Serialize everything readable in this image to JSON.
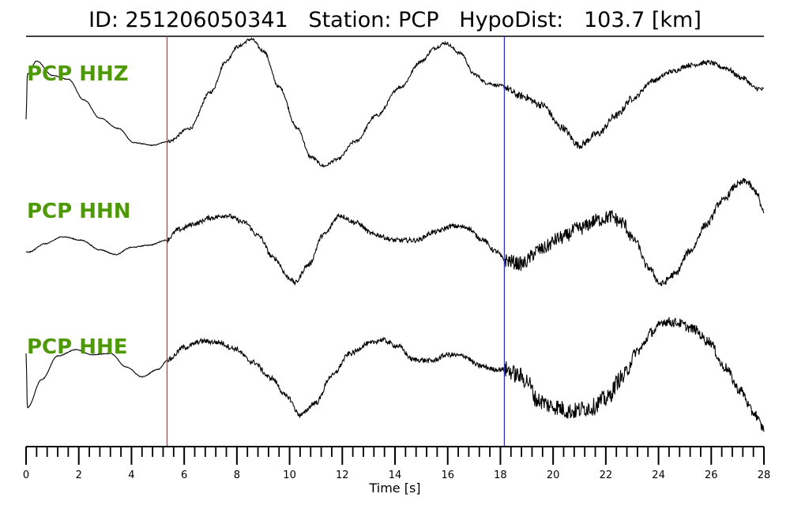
{
  "header": {
    "title": "ID: 251206050341   Station: PCP   HypoDist:   103.7 [km]"
  },
  "chart_data": {
    "type": "line",
    "xlabel": "Time [s]",
    "xlim": [
      0,
      28
    ],
    "major_ticks": [
      0,
      2,
      4,
      6,
      8,
      10,
      12,
      14,
      16,
      18,
      20,
      22,
      24,
      26,
      28
    ],
    "minor_tick_step": 0.4,
    "p_pick": {
      "time": 5.35,
      "color": "#e03030"
    },
    "s_pick": {
      "time": 18.15,
      "color": "#3030c0"
    },
    "trace_color": "#000000",
    "label_color": "#4e9a06",
    "series": [
      {
        "name": "PCP HHZ",
        "noise": [
          0.003,
          0.012,
          0.028,
          0.018
        ],
        "points": [
          [
            0,
            0.37
          ],
          [
            0.05,
            0.72
          ],
          [
            0.4,
            0.82
          ],
          [
            1.0,
            0.71
          ],
          [
            1.6,
            0.68
          ],
          [
            2.2,
            0.52
          ],
          [
            2.8,
            0.38
          ],
          [
            3.5,
            0.3
          ],
          [
            4.1,
            0.19
          ],
          [
            4.8,
            0.17
          ],
          [
            5.4,
            0.2
          ],
          [
            6.2,
            0.3
          ],
          [
            7.0,
            0.58
          ],
          [
            7.6,
            0.82
          ],
          [
            8.0,
            0.93
          ],
          [
            8.55,
            0.99
          ],
          [
            9.0,
            0.9
          ],
          [
            9.6,
            0.62
          ],
          [
            10.3,
            0.3
          ],
          [
            10.8,
            0.08
          ],
          [
            11.3,
            0.01
          ],
          [
            11.8,
            0.06
          ],
          [
            12.5,
            0.2
          ],
          [
            13.3,
            0.4
          ],
          [
            14.2,
            0.62
          ],
          [
            15.0,
            0.82
          ],
          [
            15.5,
            0.92
          ],
          [
            15.9,
            0.96
          ],
          [
            16.5,
            0.88
          ],
          [
            17.0,
            0.72
          ],
          [
            17.5,
            0.65
          ],
          [
            18.0,
            0.63
          ],
          [
            18.8,
            0.55
          ],
          [
            19.6,
            0.48
          ],
          [
            20.3,
            0.31
          ],
          [
            21.0,
            0.17
          ],
          [
            21.7,
            0.26
          ],
          [
            22.4,
            0.4
          ],
          [
            23.0,
            0.53
          ],
          [
            23.8,
            0.67
          ],
          [
            24.5,
            0.74
          ],
          [
            25.2,
            0.79
          ],
          [
            25.9,
            0.81
          ],
          [
            26.5,
            0.77
          ],
          [
            27.2,
            0.69
          ],
          [
            27.7,
            0.61
          ],
          [
            28.0,
            0.6
          ]
        ]
      },
      {
        "name": "PCP HHN",
        "noise": [
          0.004,
          0.02,
          0.06,
          0.03
        ],
        "points": [
          [
            0,
            0.35
          ],
          [
            0.1,
            0.35
          ],
          [
            0.7,
            0.42
          ],
          [
            1.4,
            0.48
          ],
          [
            2.1,
            0.45
          ],
          [
            2.8,
            0.37
          ],
          [
            3.4,
            0.33
          ],
          [
            4.0,
            0.39
          ],
          [
            4.7,
            0.41
          ],
          [
            5.3,
            0.45
          ],
          [
            5.8,
            0.54
          ],
          [
            6.4,
            0.59
          ],
          [
            7.0,
            0.64
          ],
          [
            7.6,
            0.66
          ],
          [
            8.3,
            0.6
          ],
          [
            8.8,
            0.49
          ],
          [
            9.4,
            0.3
          ],
          [
            10.0,
            0.13
          ],
          [
            10.2,
            0.09
          ],
          [
            10.7,
            0.24
          ],
          [
            11.3,
            0.5
          ],
          [
            11.9,
            0.66
          ],
          [
            12.5,
            0.6
          ],
          [
            13.2,
            0.5
          ],
          [
            14.0,
            0.45
          ],
          [
            14.8,
            0.45
          ],
          [
            15.5,
            0.52
          ],
          [
            16.2,
            0.57
          ],
          [
            16.7,
            0.56
          ],
          [
            17.3,
            0.46
          ],
          [
            17.8,
            0.36
          ],
          [
            18.2,
            0.28
          ],
          [
            18.8,
            0.25
          ],
          [
            19.5,
            0.37
          ],
          [
            20.3,
            0.47
          ],
          [
            21.0,
            0.55
          ],
          [
            21.7,
            0.62
          ],
          [
            22.2,
            0.65
          ],
          [
            22.6,
            0.6
          ],
          [
            23.1,
            0.45
          ],
          [
            23.6,
            0.22
          ],
          [
            24.1,
            0.08
          ],
          [
            24.6,
            0.16
          ],
          [
            25.2,
            0.36
          ],
          [
            25.8,
            0.58
          ],
          [
            26.4,
            0.78
          ],
          [
            27.0,
            0.92
          ],
          [
            27.3,
            0.95
          ],
          [
            27.7,
            0.86
          ],
          [
            28.0,
            0.68
          ]
        ]
      },
      {
        "name": "PCP HHE",
        "noise": [
          0.003,
          0.02,
          0.07,
          0.04
        ],
        "points": [
          [
            0,
            0.68
          ],
          [
            0.05,
            0.24
          ],
          [
            0.6,
            0.47
          ],
          [
            1.2,
            0.66
          ],
          [
            1.9,
            0.71
          ],
          [
            2.5,
            0.67
          ],
          [
            3.2,
            0.68
          ],
          [
            3.8,
            0.57
          ],
          [
            4.4,
            0.49
          ],
          [
            5.0,
            0.55
          ],
          [
            5.4,
            0.63
          ],
          [
            6.0,
            0.73
          ],
          [
            6.7,
            0.78
          ],
          [
            7.3,
            0.77
          ],
          [
            7.9,
            0.72
          ],
          [
            8.6,
            0.61
          ],
          [
            9.3,
            0.48
          ],
          [
            9.9,
            0.33
          ],
          [
            10.4,
            0.18
          ],
          [
            11.0,
            0.28
          ],
          [
            11.6,
            0.5
          ],
          [
            12.3,
            0.68
          ],
          [
            13.0,
            0.76
          ],
          [
            13.5,
            0.79
          ],
          [
            14.1,
            0.74
          ],
          [
            14.7,
            0.63
          ],
          [
            15.4,
            0.62
          ],
          [
            16.0,
            0.67
          ],
          [
            16.6,
            0.66
          ],
          [
            17.2,
            0.58
          ],
          [
            17.8,
            0.55
          ],
          [
            18.2,
            0.55
          ],
          [
            18.7,
            0.5
          ],
          [
            19.0,
            0.46
          ],
          [
            19.4,
            0.3
          ],
          [
            20.0,
            0.25
          ],
          [
            20.7,
            0.21
          ],
          [
            21.4,
            0.24
          ],
          [
            22.0,
            0.31
          ],
          [
            22.6,
            0.48
          ],
          [
            23.2,
            0.7
          ],
          [
            23.8,
            0.86
          ],
          [
            24.2,
            0.94
          ],
          [
            24.7,
            0.93
          ],
          [
            25.3,
            0.88
          ],
          [
            25.9,
            0.78
          ],
          [
            26.5,
            0.57
          ],
          [
            27.1,
            0.38
          ],
          [
            27.6,
            0.2
          ],
          [
            28.0,
            0.07
          ]
        ]
      }
    ]
  }
}
